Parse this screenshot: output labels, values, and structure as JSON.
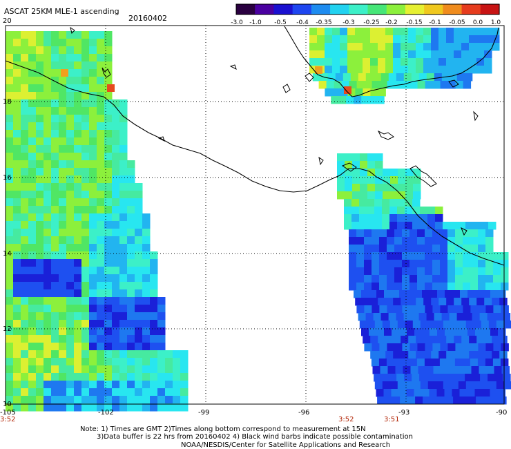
{
  "header": {
    "title": "ASCAT 25KM MLE-1 ascending",
    "date": "20160402"
  },
  "colorbar": {
    "labels": [
      "-3.0",
      "-1.0",
      "-0.5",
      "-0.4",
      "-0.35",
      "-0.3",
      "-0.25",
      "-0.2",
      "-0.15",
      "-0.1",
      "-0.05",
      "0.0",
      "1.0"
    ],
    "colors": [
      "#2a0040",
      "#4a00a0",
      "#1a10d0",
      "#1e46f0",
      "#1e8cf0",
      "#22d2f0",
      "#3cf0c8",
      "#46e678",
      "#8cf03c",
      "#e6f032",
      "#f0c81e",
      "#f08c1e",
      "#e63c1e",
      "#c81414"
    ]
  },
  "map": {
    "x_ticks": [
      "-105",
      "-102",
      "-99",
      "-96",
      "-93",
      "-90"
    ],
    "y_ticks": [
      "20",
      "18",
      "16",
      "14",
      "12",
      "10"
    ],
    "bottom_times": [
      "3:52",
      "3:52",
      "3:51"
    ],
    "longitude_range": [
      -105,
      -90
    ],
    "latitude_range": [
      10,
      20
    ]
  },
  "notes": {
    "line1": "Note: 1) Times are GMT 2)Times along bottom correspond to measurement at 15N",
    "line2": "3)Data buffer is 22 hrs from 20160402 4) Black wind barbs indicate possible contamination",
    "line3": "NOAA/NESDIS/Center for Satellite Applications and Research"
  }
}
